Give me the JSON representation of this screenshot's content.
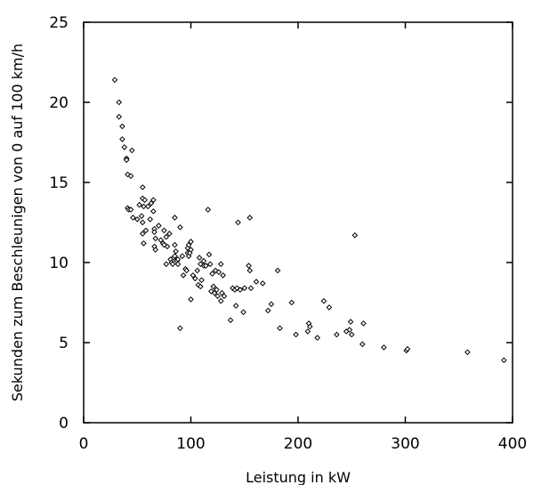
{
  "chart_data": {
    "type": "scatter",
    "title": "",
    "xlabel": "Leistung in kW",
    "ylabel": "Sekunden zum Beschleunigen von 0 auf 100 km/h",
    "xlim": [
      0,
      400
    ],
    "ylim": [
      0,
      25
    ],
    "x_ticks": [
      0,
      100,
      200,
      300,
      400
    ],
    "y_ticks": [
      0,
      5,
      10,
      15,
      20,
      25
    ],
    "grid": false,
    "legend": "none",
    "marker": "hollow-diamond",
    "marker_color": "#000000",
    "points": [
      [
        29,
        21.4
      ],
      [
        33,
        20.0
      ],
      [
        33,
        19.1
      ],
      [
        36,
        18.5
      ],
      [
        36,
        17.7
      ],
      [
        38,
        17.2
      ],
      [
        40,
        16.5
      ],
      [
        40,
        16.4
      ],
      [
        41,
        15.5
      ],
      [
        44,
        15.4
      ],
      [
        45,
        17.0
      ],
      [
        41,
        13.4
      ],
      [
        42,
        13.3
      ],
      [
        44,
        13.3
      ],
      [
        46,
        12.8
      ],
      [
        50,
        12.7
      ],
      [
        52,
        13.6
      ],
      [
        54,
        12.9
      ],
      [
        55,
        14.7
      ],
      [
        55,
        14.0
      ],
      [
        56,
        13.5
      ],
      [
        57,
        13.9
      ],
      [
        55,
        12.5
      ],
      [
        58,
        12.0
      ],
      [
        55,
        11.8
      ],
      [
        56,
        11.2
      ],
      [
        60,
        13.5
      ],
      [
        62,
        12.7
      ],
      [
        63,
        13.7
      ],
      [
        65,
        13.9
      ],
      [
        65,
        13.2
      ],
      [
        66,
        12.1
      ],
      [
        66,
        11.9
      ],
      [
        67,
        11.5
      ],
      [
        66,
        11.0
      ],
      [
        67,
        10.8
      ],
      [
        70,
        12.3
      ],
      [
        72,
        11.4
      ],
      [
        74,
        11.2
      ],
      [
        75,
        12.0
      ],
      [
        75,
        11.1
      ],
      [
        77,
        11.6
      ],
      [
        78,
        11.0
      ],
      [
        80,
        11.8
      ],
      [
        77,
        9.9
      ],
      [
        81,
        10.2
      ],
      [
        82,
        10.0
      ],
      [
        83,
        9.9
      ],
      [
        84,
        10.3
      ],
      [
        85,
        12.8
      ],
      [
        85,
        11.1
      ],
      [
        85,
        10.4
      ],
      [
        86,
        10.7
      ],
      [
        87,
        10.1
      ],
      [
        88,
        9.9
      ],
      [
        88,
        10.2
      ],
      [
        90,
        12.2
      ],
      [
        90,
        5.9
      ],
      [
        92,
        10.4
      ],
      [
        93,
        9.2
      ],
      [
        95,
        9.6
      ],
      [
        96,
        9.5
      ],
      [
        97,
        10.9
      ],
      [
        97,
        10.6
      ],
      [
        98,
        11.1
      ],
      [
        98,
        10.4
      ],
      [
        99,
        10.6
      ],
      [
        100,
        11.3
      ],
      [
        100,
        10.8
      ],
      [
        100,
        7.7
      ],
      [
        102,
        9.2
      ],
      [
        104,
        9.0
      ],
      [
        106,
        9.5
      ],
      [
        107,
        8.6
      ],
      [
        108,
        10.3
      ],
      [
        109,
        9.9
      ],
      [
        109,
        8.5
      ],
      [
        110,
        8.9
      ],
      [
        112,
        10.1
      ],
      [
        112,
        9.8
      ],
      [
        114,
        9.8
      ],
      [
        116,
        13.3
      ],
      [
        117,
        10.5
      ],
      [
        118,
        9.9
      ],
      [
        119,
        8.2
      ],
      [
        120,
        9.3
      ],
      [
        121,
        8.5
      ],
      [
        122,
        8.1
      ],
      [
        123,
        9.5
      ],
      [
        124,
        8.3
      ],
      [
        125,
        7.9
      ],
      [
        126,
        9.4
      ],
      [
        128,
        9.9
      ],
      [
        128,
        7.6
      ],
      [
        129,
        8.1
      ],
      [
        130,
        9.2
      ],
      [
        131,
        7.9
      ],
      [
        137,
        6.4
      ],
      [
        139,
        8.4
      ],
      [
        141,
        8.3
      ],
      [
        142,
        7.3
      ],
      [
        143,
        8.4
      ],
      [
        144,
        12.5
      ],
      [
        146,
        8.3
      ],
      [
        149,
        6.9
      ],
      [
        150,
        8.4
      ],
      [
        154,
        9.8
      ],
      [
        155,
        12.8
      ],
      [
        155,
        9.5
      ],
      [
        156,
        8.4
      ],
      [
        161,
        8.8
      ],
      [
        167,
        8.7
      ],
      [
        172,
        7.0
      ],
      [
        175,
        7.4
      ],
      [
        181,
        9.5
      ],
      [
        183,
        5.9
      ],
      [
        194,
        7.5
      ],
      [
        198,
        5.5
      ],
      [
        209,
        5.7
      ],
      [
        210,
        6.2
      ],
      [
        211,
        6.0
      ],
      [
        218,
        5.3
      ],
      [
        224,
        7.6
      ],
      [
        229,
        7.2
      ],
      [
        236,
        5.5
      ],
      [
        245,
        5.7
      ],
      [
        248,
        5.8
      ],
      [
        249,
        6.3
      ],
      [
        250,
        5.5
      ],
      [
        253,
        11.7
      ],
      [
        260,
        4.9
      ],
      [
        261,
        6.2
      ],
      [
        280,
        4.7
      ],
      [
        301,
        4.5
      ],
      [
        302,
        4.6
      ],
      [
        358,
        4.4
      ],
      [
        392,
        3.9
      ]
    ]
  }
}
